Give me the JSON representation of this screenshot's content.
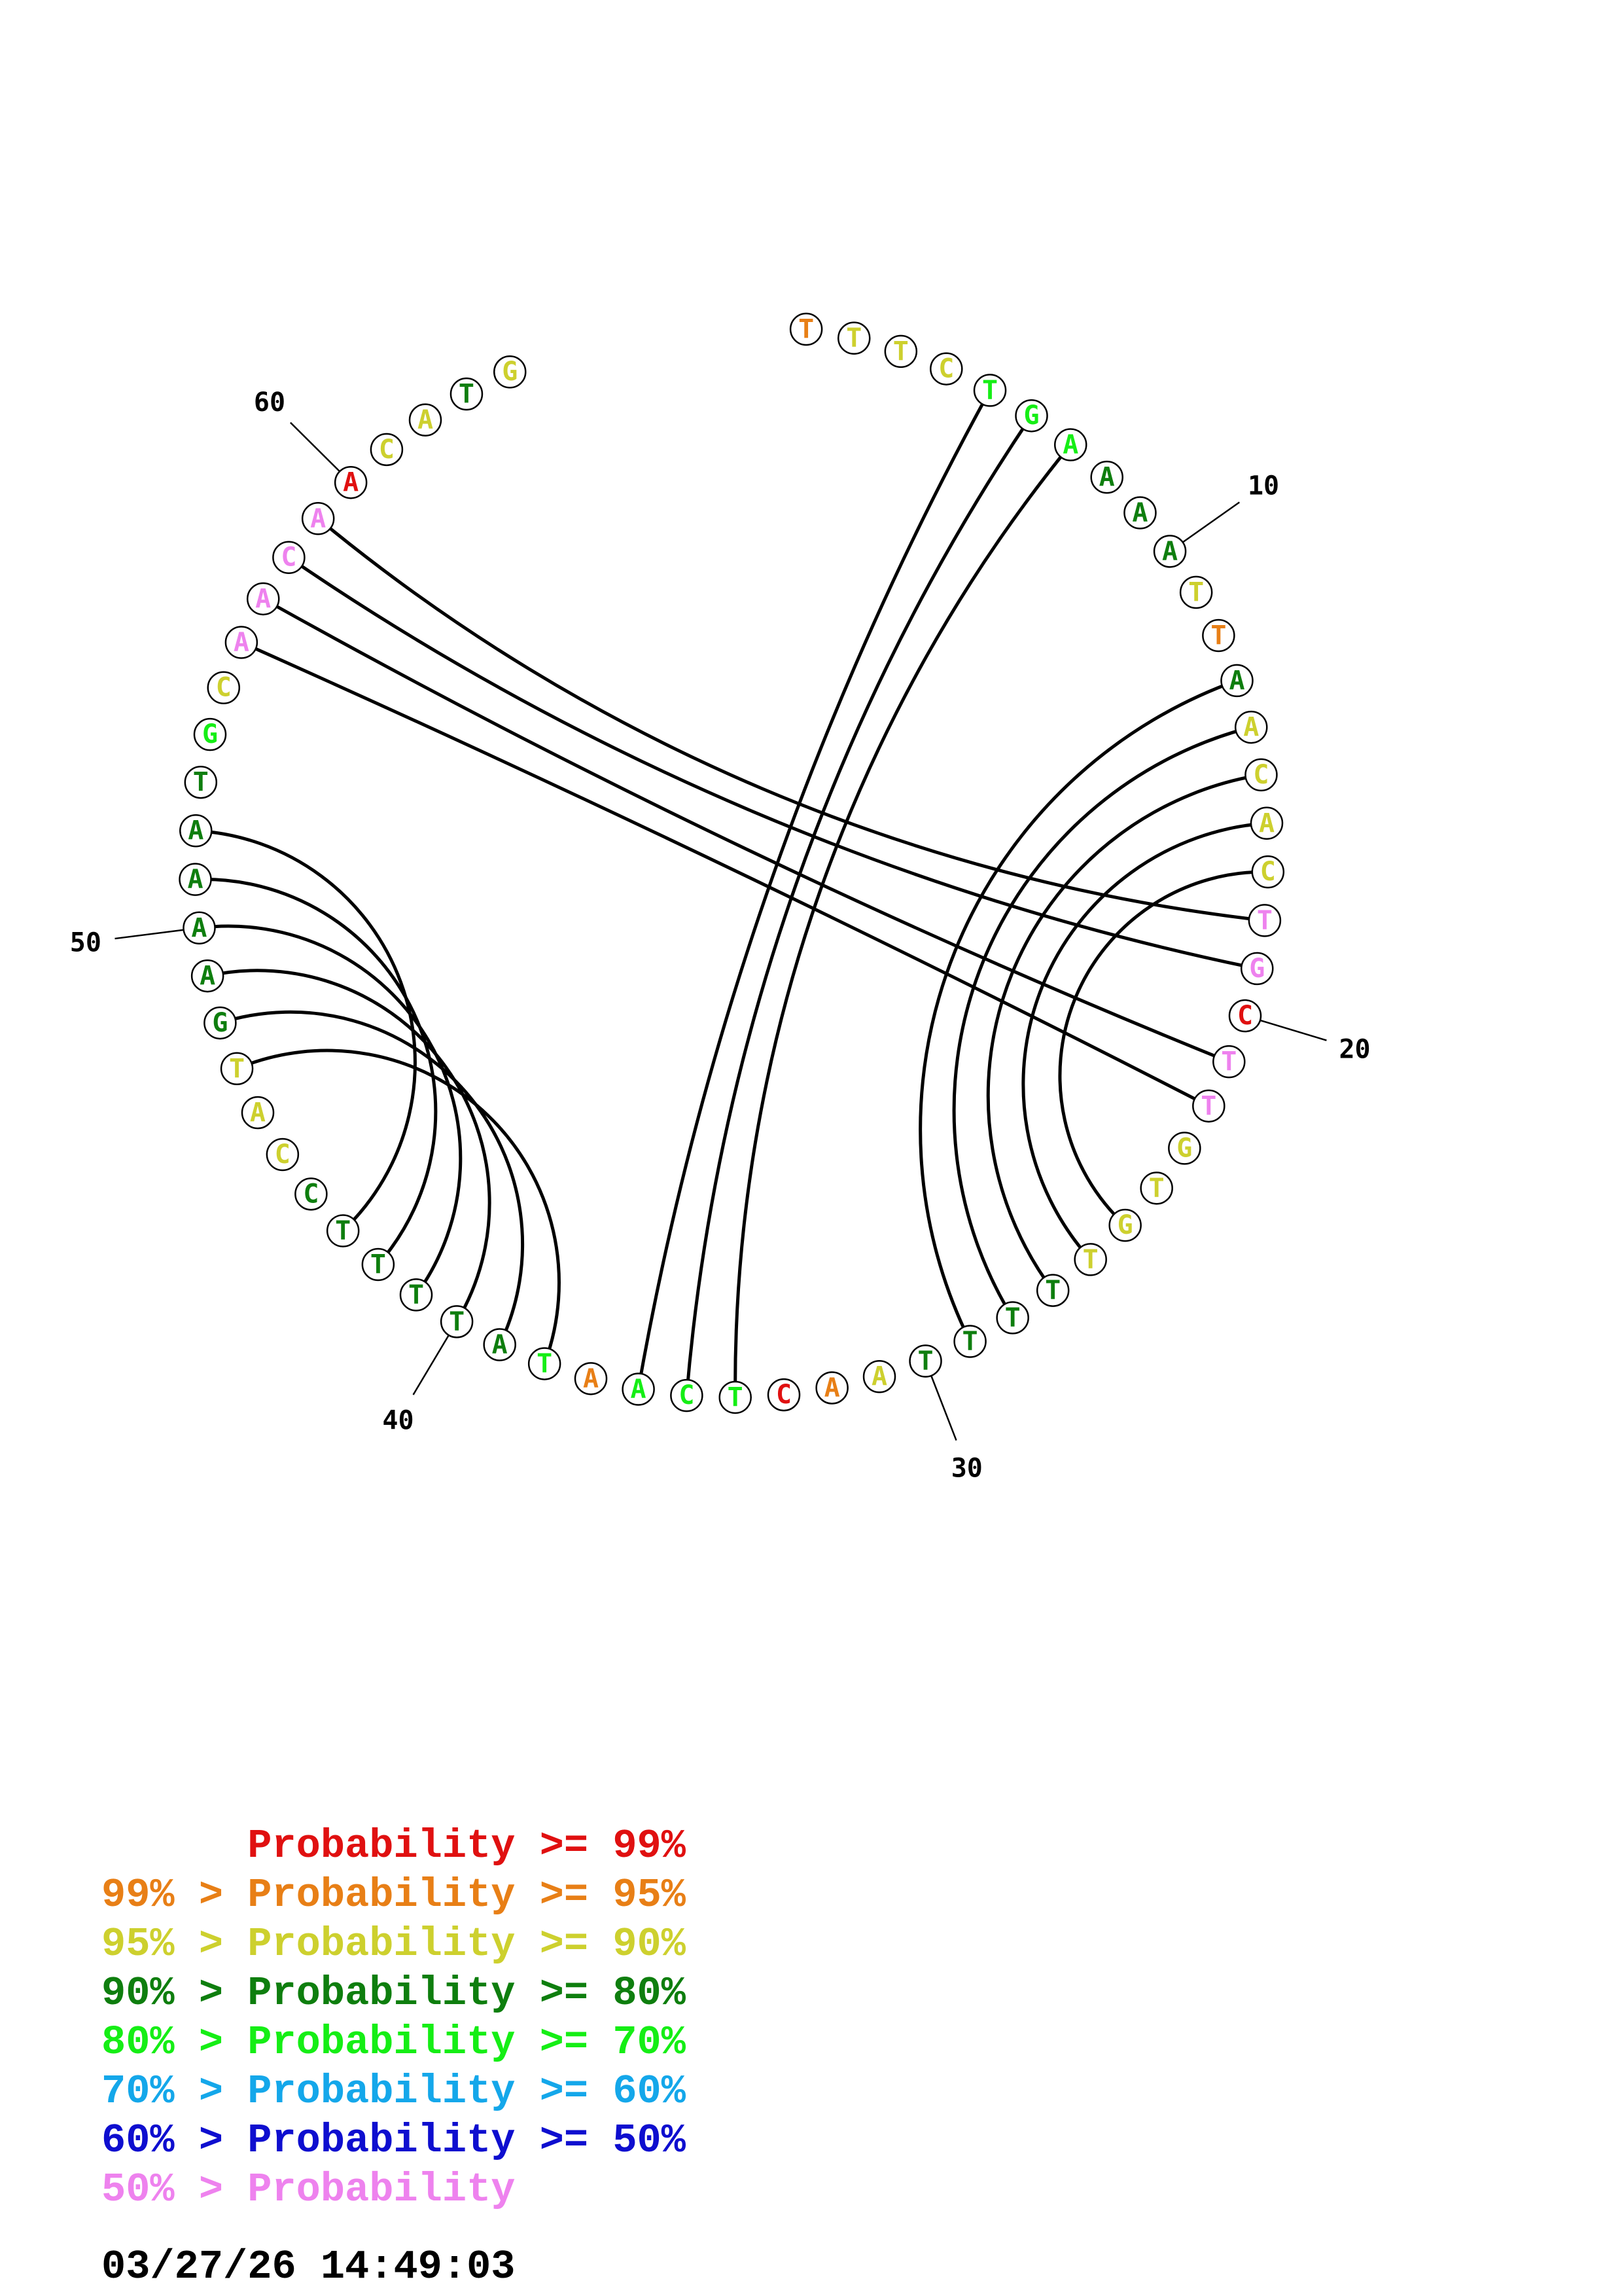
{
  "sequence": [
    {
      "n": 1,
      "base": "T",
      "color": "#e87f16"
    },
    {
      "n": 2,
      "base": "T",
      "color": "#cdd02e"
    },
    {
      "n": 3,
      "base": "T",
      "color": "#cdd02e"
    },
    {
      "n": 4,
      "base": "C",
      "color": "#cdd02e"
    },
    {
      "n": 5,
      "base": "T",
      "color": "#15ee15"
    },
    {
      "n": 6,
      "base": "G",
      "color": "#15ee15"
    },
    {
      "n": 7,
      "base": "A",
      "color": "#15ee15"
    },
    {
      "n": 8,
      "base": "A",
      "color": "#0e7e0e"
    },
    {
      "n": 9,
      "base": "A",
      "color": "#0e7e0e"
    },
    {
      "n": 10,
      "base": "A",
      "color": "#0e7e0e"
    },
    {
      "n": 11,
      "base": "T",
      "color": "#cdd02e"
    },
    {
      "n": 12,
      "base": "T",
      "color": "#e87f16"
    },
    {
      "n": 13,
      "base": "A",
      "color": "#0e7e0e"
    },
    {
      "n": 14,
      "base": "A",
      "color": "#cdd02e"
    },
    {
      "n": 15,
      "base": "C",
      "color": "#cdd02e"
    },
    {
      "n": 16,
      "base": "A",
      "color": "#cdd02e"
    },
    {
      "n": 17,
      "base": "C",
      "color": "#cdd02e"
    },
    {
      "n": 18,
      "base": "T",
      "color": "#ee82ee"
    },
    {
      "n": 19,
      "base": "G",
      "color": "#ee82ee"
    },
    {
      "n": 20,
      "base": "C",
      "color": "#e01010"
    },
    {
      "n": 21,
      "base": "T",
      "color": "#ee82ee"
    },
    {
      "n": 22,
      "base": "T",
      "color": "#ee82ee"
    },
    {
      "n": 23,
      "base": "G",
      "color": "#cdd02e"
    },
    {
      "n": 24,
      "base": "T",
      "color": "#cdd02e"
    },
    {
      "n": 25,
      "base": "G",
      "color": "#cdd02e"
    },
    {
      "n": 26,
      "base": "T",
      "color": "#cdd02e"
    },
    {
      "n": 27,
      "base": "T",
      "color": "#0e7e0e"
    },
    {
      "n": 28,
      "base": "T",
      "color": "#0e7e0e"
    },
    {
      "n": 29,
      "base": "T",
      "color": "#0e7e0e"
    },
    {
      "n": 30,
      "base": "T",
      "color": "#0e7e0e"
    },
    {
      "n": 31,
      "base": "A",
      "color": "#cdd02e"
    },
    {
      "n": 32,
      "base": "A",
      "color": "#e87f16"
    },
    {
      "n": 33,
      "base": "C",
      "color": "#e01010"
    },
    {
      "n": 34,
      "base": "T",
      "color": "#15ee15"
    },
    {
      "n": 35,
      "base": "C",
      "color": "#15ee15"
    },
    {
      "n": 36,
      "base": "A",
      "color": "#15ee15"
    },
    {
      "n": 37,
      "base": "A",
      "color": "#e87f16"
    },
    {
      "n": 38,
      "base": "T",
      "color": "#15ee15"
    },
    {
      "n": 39,
      "base": "A",
      "color": "#0e7e0e"
    },
    {
      "n": 40,
      "base": "T",
      "color": "#0e7e0e"
    },
    {
      "n": 41,
      "base": "T",
      "color": "#0e7e0e"
    },
    {
      "n": 42,
      "base": "T",
      "color": "#0e7e0e"
    },
    {
      "n": 43,
      "base": "T",
      "color": "#0e7e0e"
    },
    {
      "n": 44,
      "base": "C",
      "color": "#0e7e0e"
    },
    {
      "n": 45,
      "base": "C",
      "color": "#cdd02e"
    },
    {
      "n": 46,
      "base": "A",
      "color": "#cdd02e"
    },
    {
      "n": 47,
      "base": "T",
      "color": "#cdd02e"
    },
    {
      "n": 48,
      "base": "G",
      "color": "#0e7e0e"
    },
    {
      "n": 49,
      "base": "A",
      "color": "#0e7e0e"
    },
    {
      "n": 50,
      "base": "A",
      "color": "#0e7e0e"
    },
    {
      "n": 51,
      "base": "A",
      "color": "#0e7e0e"
    },
    {
      "n": 52,
      "base": "A",
      "color": "#0e7e0e"
    },
    {
      "n": 53,
      "base": "T",
      "color": "#0e7e0e"
    },
    {
      "n": 54,
      "base": "G",
      "color": "#15ee15"
    },
    {
      "n": 55,
      "base": "C",
      "color": "#cdd02e"
    },
    {
      "n": 56,
      "base": "A",
      "color": "#ee82ee"
    },
    {
      "n": 57,
      "base": "A",
      "color": "#ee82ee"
    },
    {
      "n": 58,
      "base": "C",
      "color": "#ee82ee"
    },
    {
      "n": 59,
      "base": "A",
      "color": "#ee82ee"
    },
    {
      "n": 60,
      "base": "A",
      "color": "#e01010"
    },
    {
      "n": 61,
      "base": "C",
      "color": "#cdd02e"
    },
    {
      "n": 62,
      "base": "A",
      "color": "#cdd02e"
    },
    {
      "n": 63,
      "base": "T",
      "color": "#0e7e0e"
    },
    {
      "n": 64,
      "base": "G",
      "color": "#cdd02e"
    }
  ],
  "pairs": [
    [
      5,
      36
    ],
    [
      6,
      35
    ],
    [
      7,
      34
    ],
    [
      13,
      29
    ],
    [
      14,
      28
    ],
    [
      15,
      27
    ],
    [
      16,
      26
    ],
    [
      17,
      25
    ],
    [
      18,
      59
    ],
    [
      19,
      58
    ],
    [
      21,
      57
    ],
    [
      22,
      56
    ],
    [
      43,
      52
    ],
    [
      42,
      51
    ],
    [
      41,
      50
    ],
    [
      40,
      49
    ],
    [
      39,
      48
    ],
    [
      38,
      47
    ]
  ],
  "position_labels": [
    {
      "n": 10,
      "text": "10"
    },
    {
      "n": 20,
      "text": "20"
    },
    {
      "n": 30,
      "text": "30"
    },
    {
      "n": 40,
      "text": "40"
    },
    {
      "n": 50,
      "text": "50"
    },
    {
      "n": 60,
      "text": "60"
    }
  ],
  "legend": [
    {
      "text": "      Probability >= 99%",
      "color": "#e01010"
    },
    {
      "text": "99% > Probability >= 95%",
      "color": "#e87f16"
    },
    {
      "text": "95% > Probability >= 90%",
      "color": "#cdd02e"
    },
    {
      "text": "90% > Probability >= 80%",
      "color": "#0e7e0e"
    },
    {
      "text": "80% > Probability >= 70%",
      "color": "#15ee15"
    },
    {
      "text": "70% > Probability >= 60%",
      "color": "#14a7ea"
    },
    {
      "text": "60% > Probability >= 50%",
      "color": "#0e0ecf"
    },
    {
      "text": "50% > Probability",
      "color": "#ee82ee"
    }
  ],
  "timestamp": "03/27/26 14:49:03"
}
